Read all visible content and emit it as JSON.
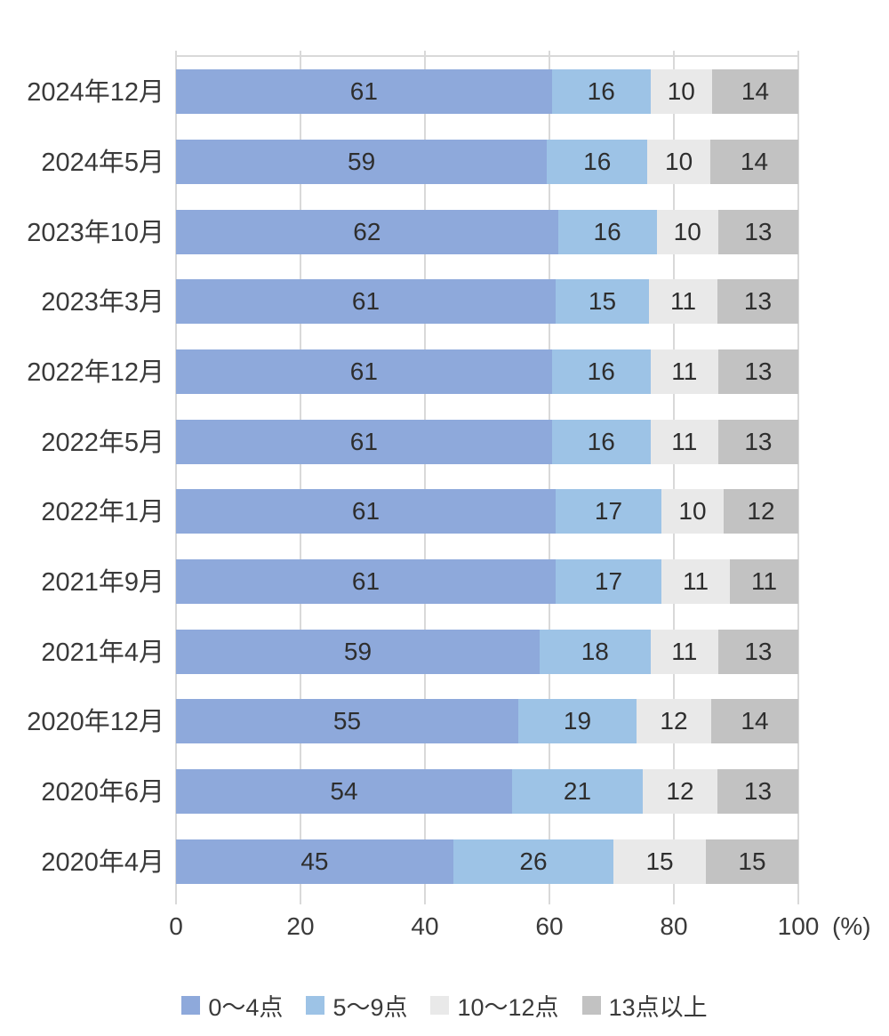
{
  "chart_data": {
    "type": "bar",
    "variant": "horizontal-stacked-100pct",
    "title": "",
    "categories": [
      "2024年12月",
      "2024年5月",
      "2023年10月",
      "2023年3月",
      "2022年12月",
      "2022年5月",
      "2022年1月",
      "2021年9月",
      "2021年4月",
      "2020年12月",
      "2020年6月",
      "2020年4月"
    ],
    "series": [
      {
        "name": "0～4点",
        "color": "#8EA9DB",
        "values": [
          61,
          59,
          62,
          61,
          61,
          61,
          61,
          61,
          59,
          55,
          54,
          45
        ]
      },
      {
        "name": "5～9点",
        "color": "#9DC3E6",
        "values": [
          16,
          16,
          16,
          15,
          16,
          16,
          17,
          17,
          18,
          19,
          21,
          26
        ]
      },
      {
        "name": "10～12点",
        "color": "#E9E9E9",
        "values": [
          10,
          10,
          10,
          11,
          11,
          11,
          10,
          11,
          11,
          12,
          12,
          15
        ]
      },
      {
        "name": "13点以上",
        "color": "#C2C2C2",
        "values": [
          14,
          14,
          13,
          13,
          13,
          13,
          12,
          11,
          13,
          14,
          13,
          15
        ]
      }
    ],
    "x_ticks": [
      "0",
      "20",
      "40",
      "60",
      "80",
      "100"
    ],
    "x_axis_unit": "(%)",
    "xlim": [
      0,
      100
    ],
    "grid": "vertical",
    "gridline_color": "#D9D9D9",
    "legend_position": "bottom"
  }
}
